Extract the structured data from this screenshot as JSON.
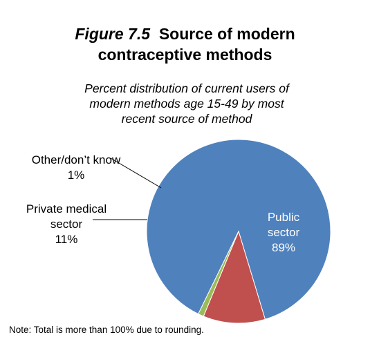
{
  "figure": {
    "number": "Figure 7.5",
    "title_line1": "Source of modern",
    "title_line2": "contraceptive methods",
    "subtitle_line1": "Percent distribution of current users of",
    "subtitle_line2": "modern methods age 15-49 by most",
    "subtitle_line3": "recent source of method",
    "note": "Note: Total is more than 100% due to rounding."
  },
  "chart_data": {
    "type": "pie",
    "slices": [
      {
        "label_lines": [
          "Public",
          "sector",
          "89%"
        ],
        "value": 89,
        "color": "#4f81bd"
      },
      {
        "label_lines": [
          "Private medical",
          "sector",
          "11%"
        ],
        "value": 11,
        "color": "#c0504d"
      },
      {
        "label_lines": [
          "Other/don’t know",
          "1%"
        ],
        "value": 1,
        "color": "#9bbb59"
      }
    ],
    "legend": "none"
  }
}
